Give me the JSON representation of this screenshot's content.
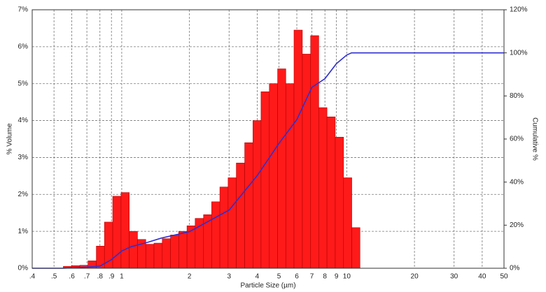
{
  "chart_data": [
    {
      "type": "histogram",
      "xlabel": "Particle Size (µm)",
      "ylabel": "% Volume",
      "log_x": true,
      "grid": true,
      "color": "#ff1a1a",
      "bins": [
        0.55,
        0.598,
        0.651,
        0.708,
        0.771,
        0.838,
        0.912,
        0.993,
        1.08,
        1.175,
        1.279,
        1.391,
        1.514,
        1.647,
        1.792,
        1.95,
        2.12,
        2.31,
        2.51,
        2.73,
        2.97,
        3.23,
        3.52,
        3.83,
        4.16,
        4.53,
        4.93,
        5.36,
        5.83,
        6.35,
        6.91,
        7.51,
        8.17,
        8.89,
        9.68,
        10.53,
        11.45
      ],
      "values": [
        0.05,
        0.07,
        0.08,
        0.2,
        0.6,
        1.25,
        1.95,
        2.05,
        1.0,
        0.78,
        0.65,
        0.68,
        0.8,
        0.9,
        1.0,
        1.15,
        1.35,
        1.45,
        1.8,
        2.2,
        2.45,
        2.85,
        3.4,
        4.0,
        4.78,
        5.0,
        5.4,
        5.0,
        6.45,
        5.8,
        6.3,
        4.35,
        4.1,
        3.55,
        2.45,
        1.1
      ],
      "xlim": [
        0.4,
        50
      ],
      "xticks": [
        {
          "value": 0.4,
          "label": ".4"
        },
        {
          "value": 0.5,
          "label": ".5"
        },
        {
          "value": 0.6,
          "label": ".6"
        },
        {
          "value": 0.7,
          "label": ".7"
        },
        {
          "value": 0.8,
          "label": ".8"
        },
        {
          "value": 0.9,
          "label": ".9"
        },
        1,
        2,
        3,
        4,
        5,
        6,
        7,
        8,
        9,
        10,
        20,
        30,
        40,
        50
      ],
      "ylim": [
        0,
        7
      ],
      "yticks": [
        {
          "value": 0,
          "label": "0%"
        },
        {
          "value": 1,
          "label": "1%"
        },
        {
          "value": 2,
          "label": "2%"
        },
        {
          "value": 3,
          "label": "3%"
        },
        {
          "value": 4,
          "label": "4%"
        },
        {
          "value": 5,
          "label": "5%"
        },
        {
          "value": 6,
          "label": "6%"
        },
        {
          "value": 7,
          "label": "7%"
        }
      ]
    },
    {
      "type": "line",
      "axis": "y2",
      "y2label": "Cumulative %",
      "color": "#2f2fd0",
      "x": [
        0.4,
        0.55,
        0.7,
        0.8,
        0.9,
        1.0,
        1.1,
        1.3,
        1.5,
        2,
        3,
        4,
        5,
        6,
        7,
        8,
        9,
        10,
        10.5,
        50
      ],
      "values": [
        0,
        0,
        0.5,
        1,
        4,
        8,
        10,
        12,
        14,
        17,
        27,
        43,
        58,
        69,
        84,
        88,
        95,
        99,
        100,
        100
      ],
      "y2lim": [
        0,
        120
      ],
      "y2ticks": [
        {
          "value": 0,
          "label": "0%"
        },
        {
          "value": 20,
          "label": "20%"
        },
        {
          "value": 40,
          "label": "40%"
        },
        {
          "value": 60,
          "label": "60%"
        },
        {
          "value": 80,
          "label": "80%"
        },
        {
          "value": 100,
          "label": "100%"
        },
        {
          "value": 120,
          "label": "120%"
        }
      ]
    }
  ]
}
